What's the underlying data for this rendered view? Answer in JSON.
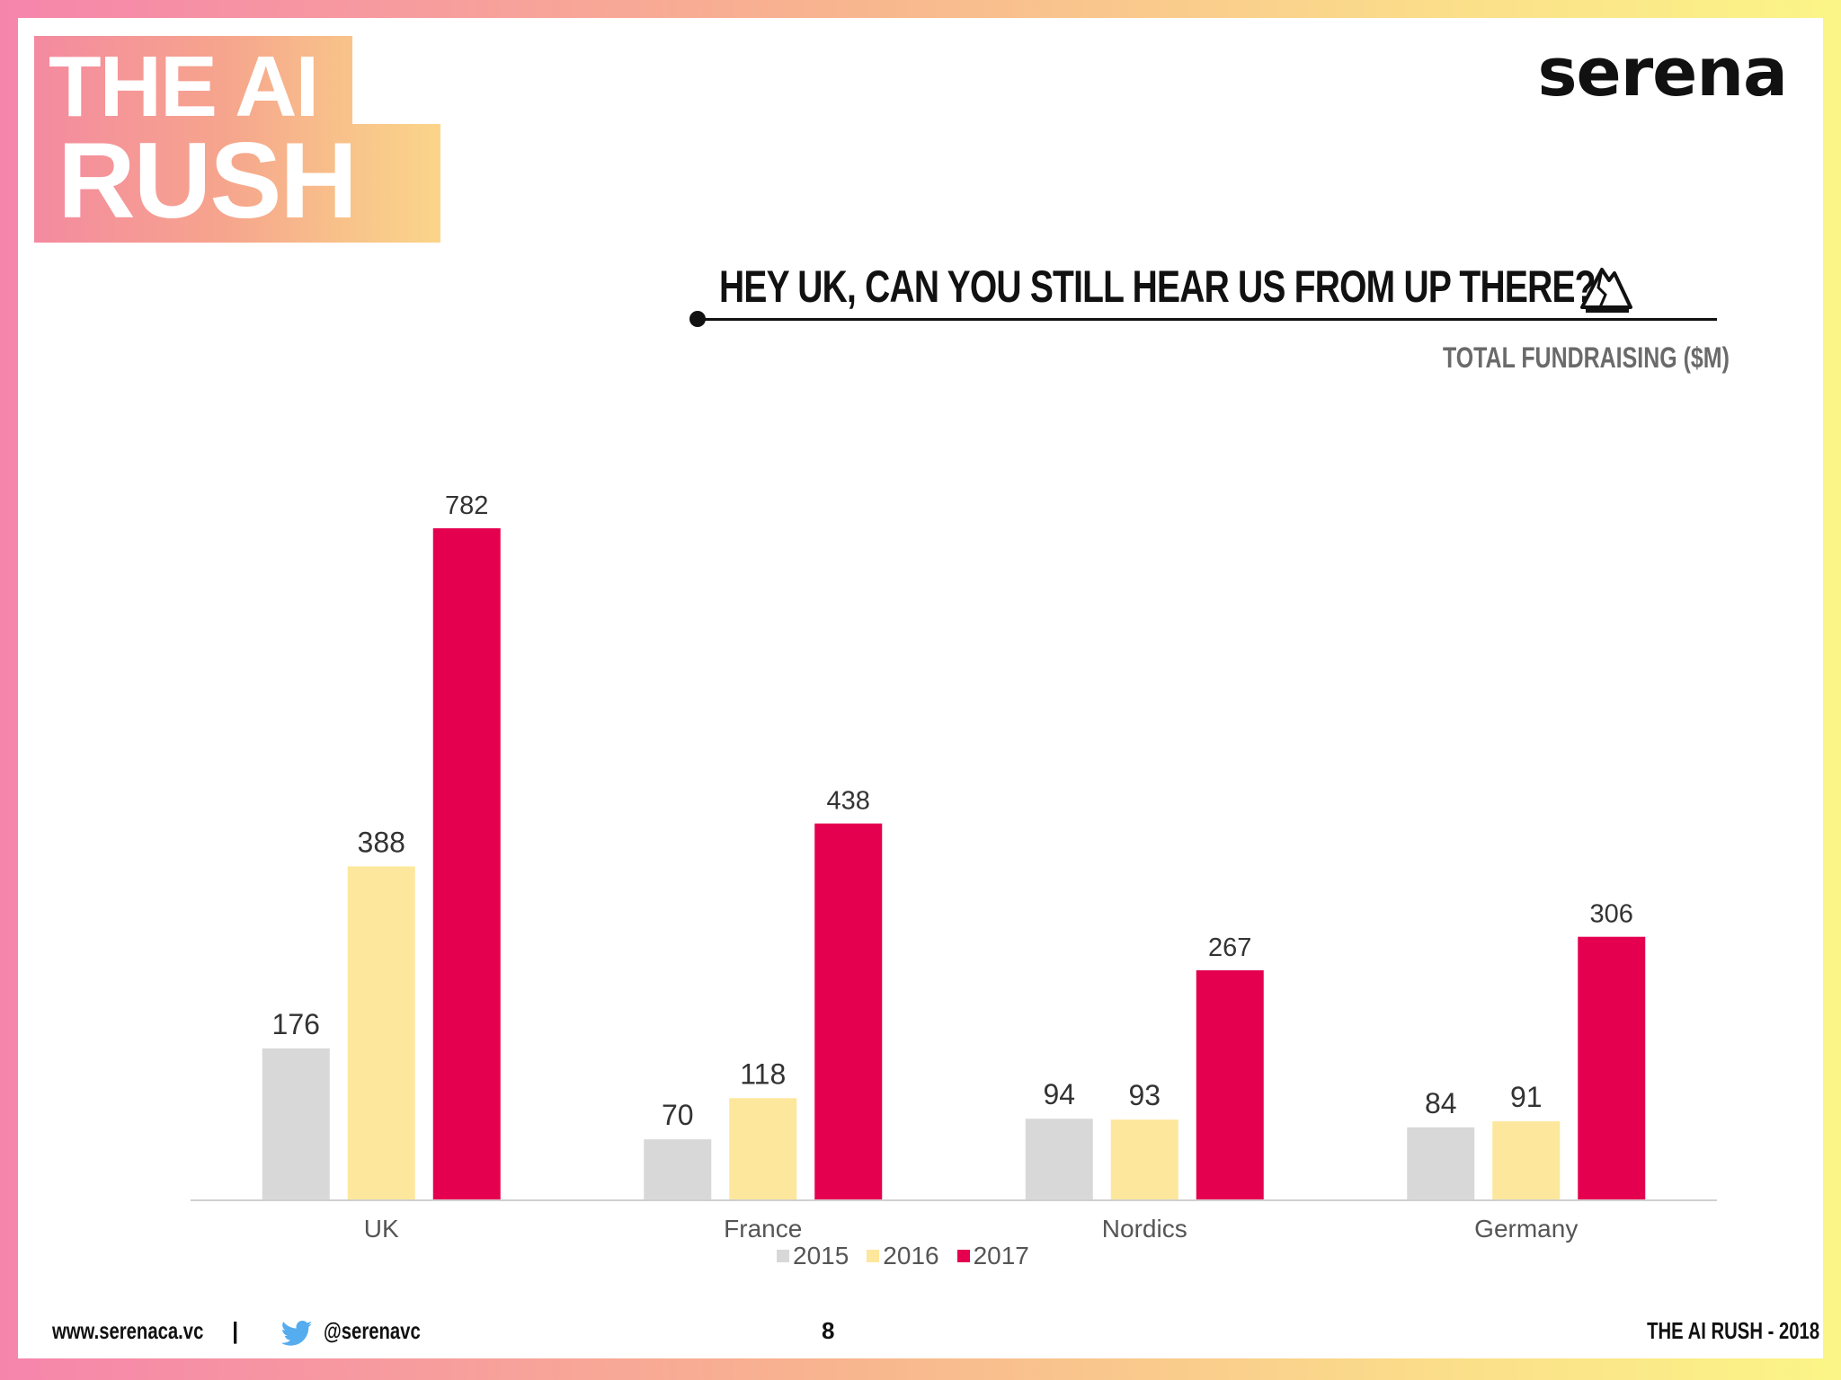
{
  "badge": {
    "line1": "THE AI",
    "line2": "RUSH"
  },
  "logo": "serena",
  "headline": "HEY UK, CAN YOU STILL HEAR US FROM UP THERE?",
  "headline_icon": "mountain-icon",
  "subtitle": "TOTAL FUNDRAISING ($M)",
  "chart_data": {
    "type": "bar",
    "categories": [
      "UK",
      "France",
      "Nordics",
      "Germany"
    ],
    "series": [
      {
        "name": "2015",
        "color": "#d9d8d9",
        "values": [
          176,
          70,
          94,
          84
        ]
      },
      {
        "name": "2016",
        "color": "#fde79c",
        "values": [
          388,
          118,
          93,
          91
        ]
      },
      {
        "name": "2017",
        "color": "#e4004f",
        "values": [
          782,
          438,
          267,
          306
        ]
      }
    ],
    "ylim": [
      0,
      782
    ],
    "grid": false,
    "legend_position": "bottom"
  },
  "footer": {
    "url": "www.serenaca.vc",
    "separator": "|",
    "twitter_icon": "twitter-icon",
    "handle": "@serenavc",
    "page": "8",
    "right": "THE AI RUSH - 2018"
  }
}
